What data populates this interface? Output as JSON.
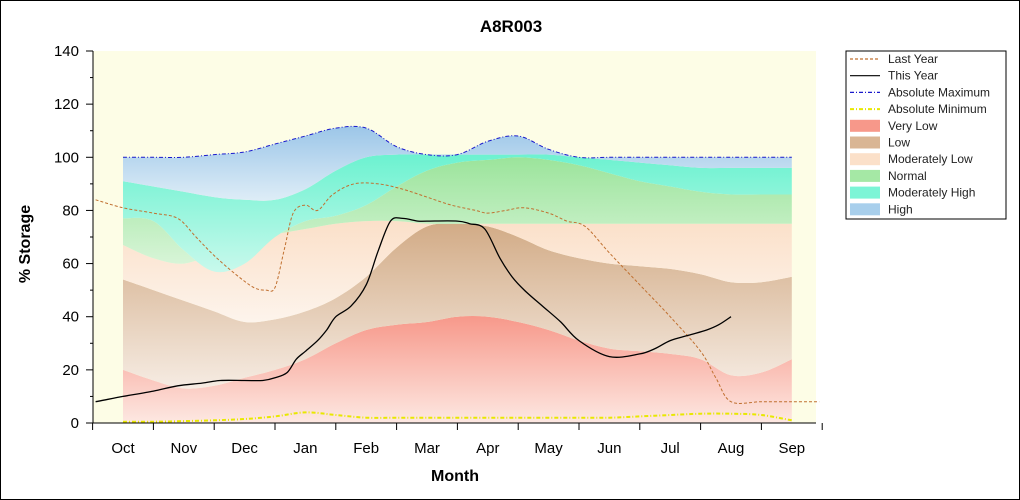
{
  "chart_data": {
    "type": "area",
    "title": "A8R003",
    "xlabel": "Month",
    "ylabel": "% Storage",
    "categories": [
      "Oct",
      "Nov",
      "Dec",
      "Jan",
      "Feb",
      "Mar",
      "Apr",
      "May",
      "Jun",
      "Jul",
      "Aug",
      "Sep"
    ],
    "ylim": [
      0,
      140
    ],
    "yticks": [
      0,
      20,
      40,
      60,
      80,
      100,
      120,
      140
    ],
    "grid": false,
    "legend_position": "right",
    "bands": {
      "x": [
        0,
        0.5,
        1,
        1.5,
        2,
        2.5,
        3,
        3.5,
        4,
        4.5,
        5,
        5.5,
        6,
        6.5,
        7,
        7.5,
        8,
        8.5,
        9,
        9.5,
        10,
        10.5,
        11
      ],
      "very_low_top": [
        20,
        16,
        13,
        14,
        17,
        20,
        24,
        30,
        35,
        37,
        38,
        40,
        40,
        38,
        35,
        31,
        28,
        27,
        26,
        24,
        18,
        19,
        24
      ],
      "low_top": [
        54,
        50,
        46,
        42,
        38,
        39,
        42,
        47,
        55,
        66,
        74,
        75,
        74,
        70,
        65,
        62,
        60,
        59,
        58,
        56,
        53,
        53,
        55
      ],
      "moderately_low_top": [
        67,
        62,
        60,
        64,
        69,
        71,
        73,
        75,
        76,
        76,
        75,
        75,
        75,
        75,
        75,
        75,
        75,
        75,
        75,
        75,
        75,
        75,
        75
      ],
      "normal_top": [
        77,
        76,
        65,
        57,
        60,
        70,
        76,
        78,
        82,
        89,
        95,
        98,
        99,
        100,
        99,
        97,
        94,
        91,
        89,
        87,
        86,
        86,
        86
      ],
      "moderately_high_top": [
        91,
        89,
        87,
        85,
        84,
        84,
        88,
        95,
        100,
        101,
        101,
        101,
        101,
        101,
        101,
        100,
        99,
        98,
        97,
        96,
        96,
        96,
        96
      ],
      "high_top": [
        100,
        100,
        100,
        101,
        102,
        105,
        108,
        111,
        111,
        104,
        101,
        101,
        106,
        108,
        103,
        100,
        100,
        100,
        100,
        100,
        100,
        100,
        100
      ]
    },
    "series": [
      {
        "name": "Last Year",
        "color": "#c07030",
        "style": "dashed",
        "x": [
          -0.45,
          0,
          0.5,
          0.9,
          1.2,
          1.5,
          1.85,
          2.15,
          2.35,
          2.5,
          2.65,
          2.8,
          3.0,
          3.2,
          3.45,
          3.8,
          4.2,
          4.6,
          5.0,
          5.4,
          5.8,
          6.0,
          6.3,
          6.6,
          7.0,
          7.3,
          7.6,
          8.0,
          8.5,
          9.0,
          9.5,
          9.75,
          10.0,
          10.5,
          11.0,
          11.45
        ],
        "y": [
          84,
          81,
          79,
          77,
          70,
          63,
          56,
          51,
          50,
          51,
          65,
          79,
          82,
          80,
          86,
          90,
          90,
          88,
          85,
          82,
          80,
          79,
          80,
          81,
          79,
          76,
          74,
          64,
          52,
          40,
          27,
          17,
          8,
          8,
          8,
          8
        ]
      },
      {
        "name": "This Year",
        "color": "#000000",
        "style": "solid",
        "x": [
          -0.45,
          0,
          0.5,
          0.9,
          1.3,
          1.6,
          2.0,
          2.3,
          2.5,
          2.7,
          2.85,
          3.0,
          3.2,
          3.35,
          3.5,
          3.75,
          4.0,
          4.2,
          4.4,
          4.6,
          4.85,
          5.0,
          5.5,
          5.7,
          5.95,
          6.2,
          6.4,
          6.6,
          6.9,
          7.2,
          7.5,
          8.0,
          8.5,
          8.75,
          9.0,
          9.3,
          9.6,
          9.8,
          10.0
        ],
        "y": [
          8,
          10,
          12,
          14,
          15,
          16,
          16,
          16,
          17,
          19,
          24,
          27,
          31,
          35,
          40,
          44,
          52,
          65,
          76,
          77,
          76,
          76,
          76,
          75,
          73,
          62,
          55,
          50,
          44,
          38,
          31,
          25,
          26,
          28,
          31,
          33,
          35,
          37,
          40
        ]
      },
      {
        "name": "Absolute Maximum",
        "color": "#1a1acc",
        "style": "dash-dot",
        "x": [
          0,
          0.5,
          1,
          1.5,
          2,
          2.5,
          3,
          3.5,
          4,
          4.5,
          5,
          5.5,
          6,
          6.5,
          7,
          7.5,
          8,
          8.5,
          9,
          9.5,
          10,
          10.5,
          11
        ],
        "y": [
          100,
          100,
          100,
          101,
          102,
          105,
          108,
          111,
          111,
          104,
          101,
          101,
          106,
          108,
          103,
          100,
          100,
          100,
          100,
          100,
          100,
          100,
          100
        ]
      },
      {
        "name": "Absolute Minimum",
        "color": "#e8e800",
        "style": "dash-dot",
        "x": [
          0,
          0.5,
          1,
          1.5,
          2,
          2.5,
          3,
          3.5,
          4,
          4.5,
          5,
          5.5,
          6,
          6.5,
          7,
          7.5,
          8,
          8.5,
          9,
          9.5,
          10,
          10.5,
          11
        ],
        "y": [
          0.5,
          0.5,
          0.7,
          1,
          1.5,
          2.5,
          4,
          3,
          2,
          2,
          2,
          2,
          2,
          2,
          2,
          2,
          2,
          2.5,
          3,
          3.5,
          3.5,
          3,
          1
        ]
      }
    ],
    "legend": [
      {
        "label": "Last Year",
        "kind": "line",
        "color": "#c07030",
        "dash": "3,2"
      },
      {
        "label": "This Year",
        "kind": "line",
        "color": "#000000",
        "dash": ""
      },
      {
        "label": "Absolute Maximum",
        "kind": "line",
        "color": "#1a1acc",
        "dash": "4,2,1,2"
      },
      {
        "label": "Absolute Minimum",
        "kind": "line",
        "color": "#e8e800",
        "dash": "4,2,1,2"
      },
      {
        "label": "Very Low",
        "kind": "swatch",
        "color": "#f7988a"
      },
      {
        "label": "Low",
        "kind": "swatch",
        "color": "#d9b594"
      },
      {
        "label": "Moderately Low",
        "kind": "swatch",
        "color": "#fbe0c9"
      },
      {
        "label": "Normal",
        "kind": "swatch",
        "color": "#a5e8a5"
      },
      {
        "label": "Moderately High",
        "kind": "swatch",
        "color": "#7cf5d6"
      },
      {
        "label": "High",
        "kind": "swatch",
        "color": "#a8cfec"
      }
    ],
    "colors": {
      "plot_background": "#fdfde6",
      "very_low": "#f7988a",
      "low": "#d9b594",
      "moderately_low": "#fbe0c9",
      "normal": "#a5e8a5",
      "moderately_high": "#7cf5d6",
      "high": "#a8cfec"
    }
  }
}
